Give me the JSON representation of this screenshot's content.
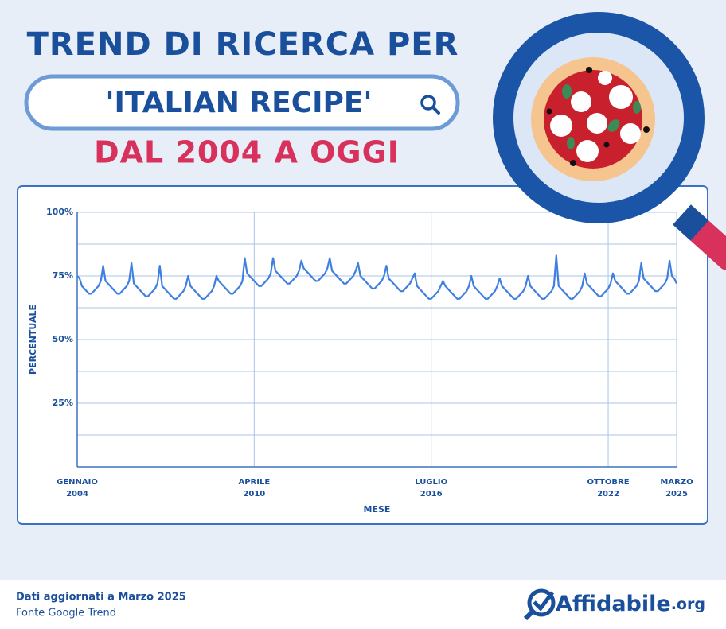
{
  "header": {
    "title": "TREND DI RICERCA PER",
    "search": "'ITALIAN RECIPE'",
    "subtitle": "DAL 2004 A OGGI"
  },
  "chart_data": {
    "type": "line",
    "color": "#3f7fe0",
    "xlabel": "MESE",
    "ylabel": "PERCENTUALE",
    "grid": true,
    "ylim": [
      0,
      100
    ],
    "yticks": [
      {
        "value": 25,
        "label": "25%"
      },
      {
        "value": 50,
        "label": "50%"
      },
      {
        "value": 75,
        "label": "75%"
      },
      {
        "value": 100,
        "label": "100%"
      }
    ],
    "yminorticks": [
      12.5,
      37.5,
      62.5,
      87.5
    ],
    "xlim": [
      "2004-01",
      "2025-03"
    ],
    "xticks": [
      {
        "value": "2004-01",
        "label": "GENNAIO 2004"
      },
      {
        "value": "2010-04",
        "label": "APRILE 2010"
      },
      {
        "value": "2016-07",
        "label": "LUGLIO 2016"
      },
      {
        "value": "2022-10",
        "label": "OTTOBRE 2022"
      },
      {
        "value": "2025-03",
        "label": "MARZO 2025"
      }
    ],
    "x": [
      "2004-01",
      "2004-02",
      "2004-03",
      "2004-04",
      "2004-05",
      "2004-06",
      "2004-07",
      "2004-08",
      "2004-09",
      "2004-10",
      "2004-11",
      "2004-12",
      "2005-01",
      "2005-02",
      "2005-03",
      "2005-04",
      "2005-05",
      "2005-06",
      "2005-07",
      "2005-08",
      "2005-09",
      "2005-10",
      "2005-11",
      "2005-12",
      "2006-01",
      "2006-02",
      "2006-03",
      "2006-04",
      "2006-05",
      "2006-06",
      "2006-07",
      "2006-08",
      "2006-09",
      "2006-10",
      "2006-11",
      "2006-12",
      "2007-01",
      "2007-02",
      "2007-03",
      "2007-04",
      "2007-05",
      "2007-06",
      "2007-07",
      "2007-08",
      "2007-09",
      "2007-10",
      "2007-11",
      "2007-12",
      "2008-01",
      "2008-02",
      "2008-03",
      "2008-04",
      "2008-05",
      "2008-06",
      "2008-07",
      "2008-08",
      "2008-09",
      "2008-10",
      "2008-11",
      "2008-12",
      "2009-01",
      "2009-02",
      "2009-03",
      "2009-04",
      "2009-05",
      "2009-06",
      "2009-07",
      "2009-08",
      "2009-09",
      "2009-10",
      "2009-11",
      "2009-12",
      "2010-01",
      "2010-02",
      "2010-03",
      "2010-04",
      "2010-05",
      "2010-06",
      "2010-07",
      "2010-08",
      "2010-09",
      "2010-10",
      "2010-11",
      "2010-12",
      "2011-01",
      "2011-02",
      "2011-03",
      "2011-04",
      "2011-05",
      "2011-06",
      "2011-07",
      "2011-08",
      "2011-09",
      "2011-10",
      "2011-11",
      "2011-12",
      "2012-01",
      "2012-02",
      "2012-03",
      "2012-04",
      "2012-05",
      "2012-06",
      "2012-07",
      "2012-08",
      "2012-09",
      "2012-10",
      "2012-11",
      "2012-12",
      "2013-01",
      "2013-02",
      "2013-03",
      "2013-04",
      "2013-05",
      "2013-06",
      "2013-07",
      "2013-08",
      "2013-09",
      "2013-10",
      "2013-11",
      "2013-12",
      "2014-01",
      "2014-02",
      "2014-03",
      "2014-04",
      "2014-05",
      "2014-06",
      "2014-07",
      "2014-08",
      "2014-09",
      "2014-10",
      "2014-11",
      "2014-12",
      "2015-01",
      "2015-02",
      "2015-03",
      "2015-04",
      "2015-05",
      "2015-06",
      "2015-07",
      "2015-08",
      "2015-09",
      "2015-10",
      "2015-11",
      "2015-12",
      "2016-01",
      "2016-02",
      "2016-03",
      "2016-04",
      "2016-05",
      "2016-06",
      "2016-07",
      "2016-08",
      "2016-09",
      "2016-10",
      "2016-11",
      "2016-12",
      "2017-01",
      "2017-02",
      "2017-03",
      "2017-04",
      "2017-05",
      "2017-06",
      "2017-07",
      "2017-08",
      "2017-09",
      "2017-10",
      "2017-11",
      "2017-12",
      "2018-01",
      "2018-02",
      "2018-03",
      "2018-04",
      "2018-05",
      "2018-06",
      "2018-07",
      "2018-08",
      "2018-09",
      "2018-10",
      "2018-11",
      "2018-12",
      "2019-01",
      "2019-02",
      "2019-03",
      "2019-04",
      "2019-05",
      "2019-06",
      "2019-07",
      "2019-08",
      "2019-09",
      "2019-10",
      "2019-11",
      "2019-12",
      "2020-01",
      "2020-02",
      "2020-03",
      "2020-04",
      "2020-05",
      "2020-06",
      "2020-07",
      "2020-08",
      "2020-09",
      "2020-10",
      "2020-11",
      "2020-12",
      "2021-01",
      "2021-02",
      "2021-03",
      "2021-04",
      "2021-05",
      "2021-06",
      "2021-07",
      "2021-08",
      "2021-09",
      "2021-10",
      "2021-11",
      "2021-12",
      "2022-01",
      "2022-02",
      "2022-03",
      "2022-04",
      "2022-05",
      "2022-06",
      "2022-07",
      "2022-08",
      "2022-09",
      "2022-10",
      "2022-11",
      "2022-12",
      "2023-01",
      "2023-02",
      "2023-03",
      "2023-04",
      "2023-05",
      "2023-06",
      "2023-07",
      "2023-08",
      "2023-09",
      "2023-10",
      "2023-11",
      "2023-12",
      "2024-01",
      "2024-02",
      "2024-03",
      "2024-04",
      "2024-05",
      "2024-06",
      "2024-07",
      "2024-08",
      "2024-09",
      "2024-10",
      "2024-11",
      "2024-12",
      "2025-01",
      "2025-02",
      "2025-03"
    ],
    "values": [
      75,
      74,
      71,
      70,
      69,
      68,
      68,
      69,
      70,
      71,
      73,
      79,
      73,
      72,
      71,
      70,
      69,
      68,
      68,
      69,
      70,
      71,
      73,
      80,
      72,
      71,
      70,
      69,
      68,
      67,
      67,
      68,
      69,
      70,
      72,
      79,
      71,
      70,
      69,
      68,
      67,
      66,
      66,
      67,
      68,
      69,
      71,
      75,
      71,
      70,
      69,
      68,
      67,
      66,
      66,
      67,
      68,
      69,
      71,
      75,
      73,
      72,
      71,
      70,
      69,
      68,
      68,
      69,
      70,
      71,
      73,
      82,
      76,
      75,
      74,
      73,
      72,
      71,
      71,
      72,
      73,
      74,
      76,
      82,
      77,
      76,
      75,
      74,
      73,
      72,
      72,
      73,
      74,
      75,
      77,
      81,
      78,
      77,
      76,
      75,
      74,
      73,
      73,
      74,
      75,
      76,
      78,
      82,
      77,
      76,
      75,
      74,
      73,
      72,
      72,
      73,
      74,
      75,
      77,
      80,
      75,
      74,
      73,
      72,
      71,
      70,
      70,
      71,
      72,
      73,
      75,
      79,
      74,
      73,
      72,
      71,
      70,
      69,
      69,
      70,
      71,
      72,
      74,
      76,
      71,
      70,
      69,
      68,
      67,
      66,
      66,
      67,
      68,
      69,
      71,
      73,
      71,
      70,
      69,
      68,
      67,
      66,
      66,
      67,
      68,
      69,
      71,
      75,
      71,
      70,
      69,
      68,
      67,
      66,
      66,
      67,
      68,
      69,
      71,
      74,
      71,
      70,
      69,
      68,
      67,
      66,
      66,
      67,
      68,
      69,
      71,
      75,
      71,
      70,
      69,
      68,
      67,
      66,
      66,
      67,
      68,
      69,
      71,
      83,
      71,
      70,
      69,
      68,
      67,
      66,
      66,
      67,
      68,
      69,
      71,
      76,
      72,
      71,
      70,
      69,
      68,
      67,
      67,
      68,
      69,
      70,
      72,
      76,
      73,
      72,
      71,
      70,
      69,
      68,
      68,
      69,
      70,
      71,
      73,
      80,
      74,
      73,
      72,
      71,
      70,
      69,
      69,
      70,
      71,
      72,
      74,
      81,
      75,
      74,
      72
    ]
  },
  "footer": {
    "updated": "Dati aggiornati a Marzo 2025",
    "source": "Fonte Google Trend",
    "brand": "Affidabile",
    "brand_suffix": ".org"
  }
}
